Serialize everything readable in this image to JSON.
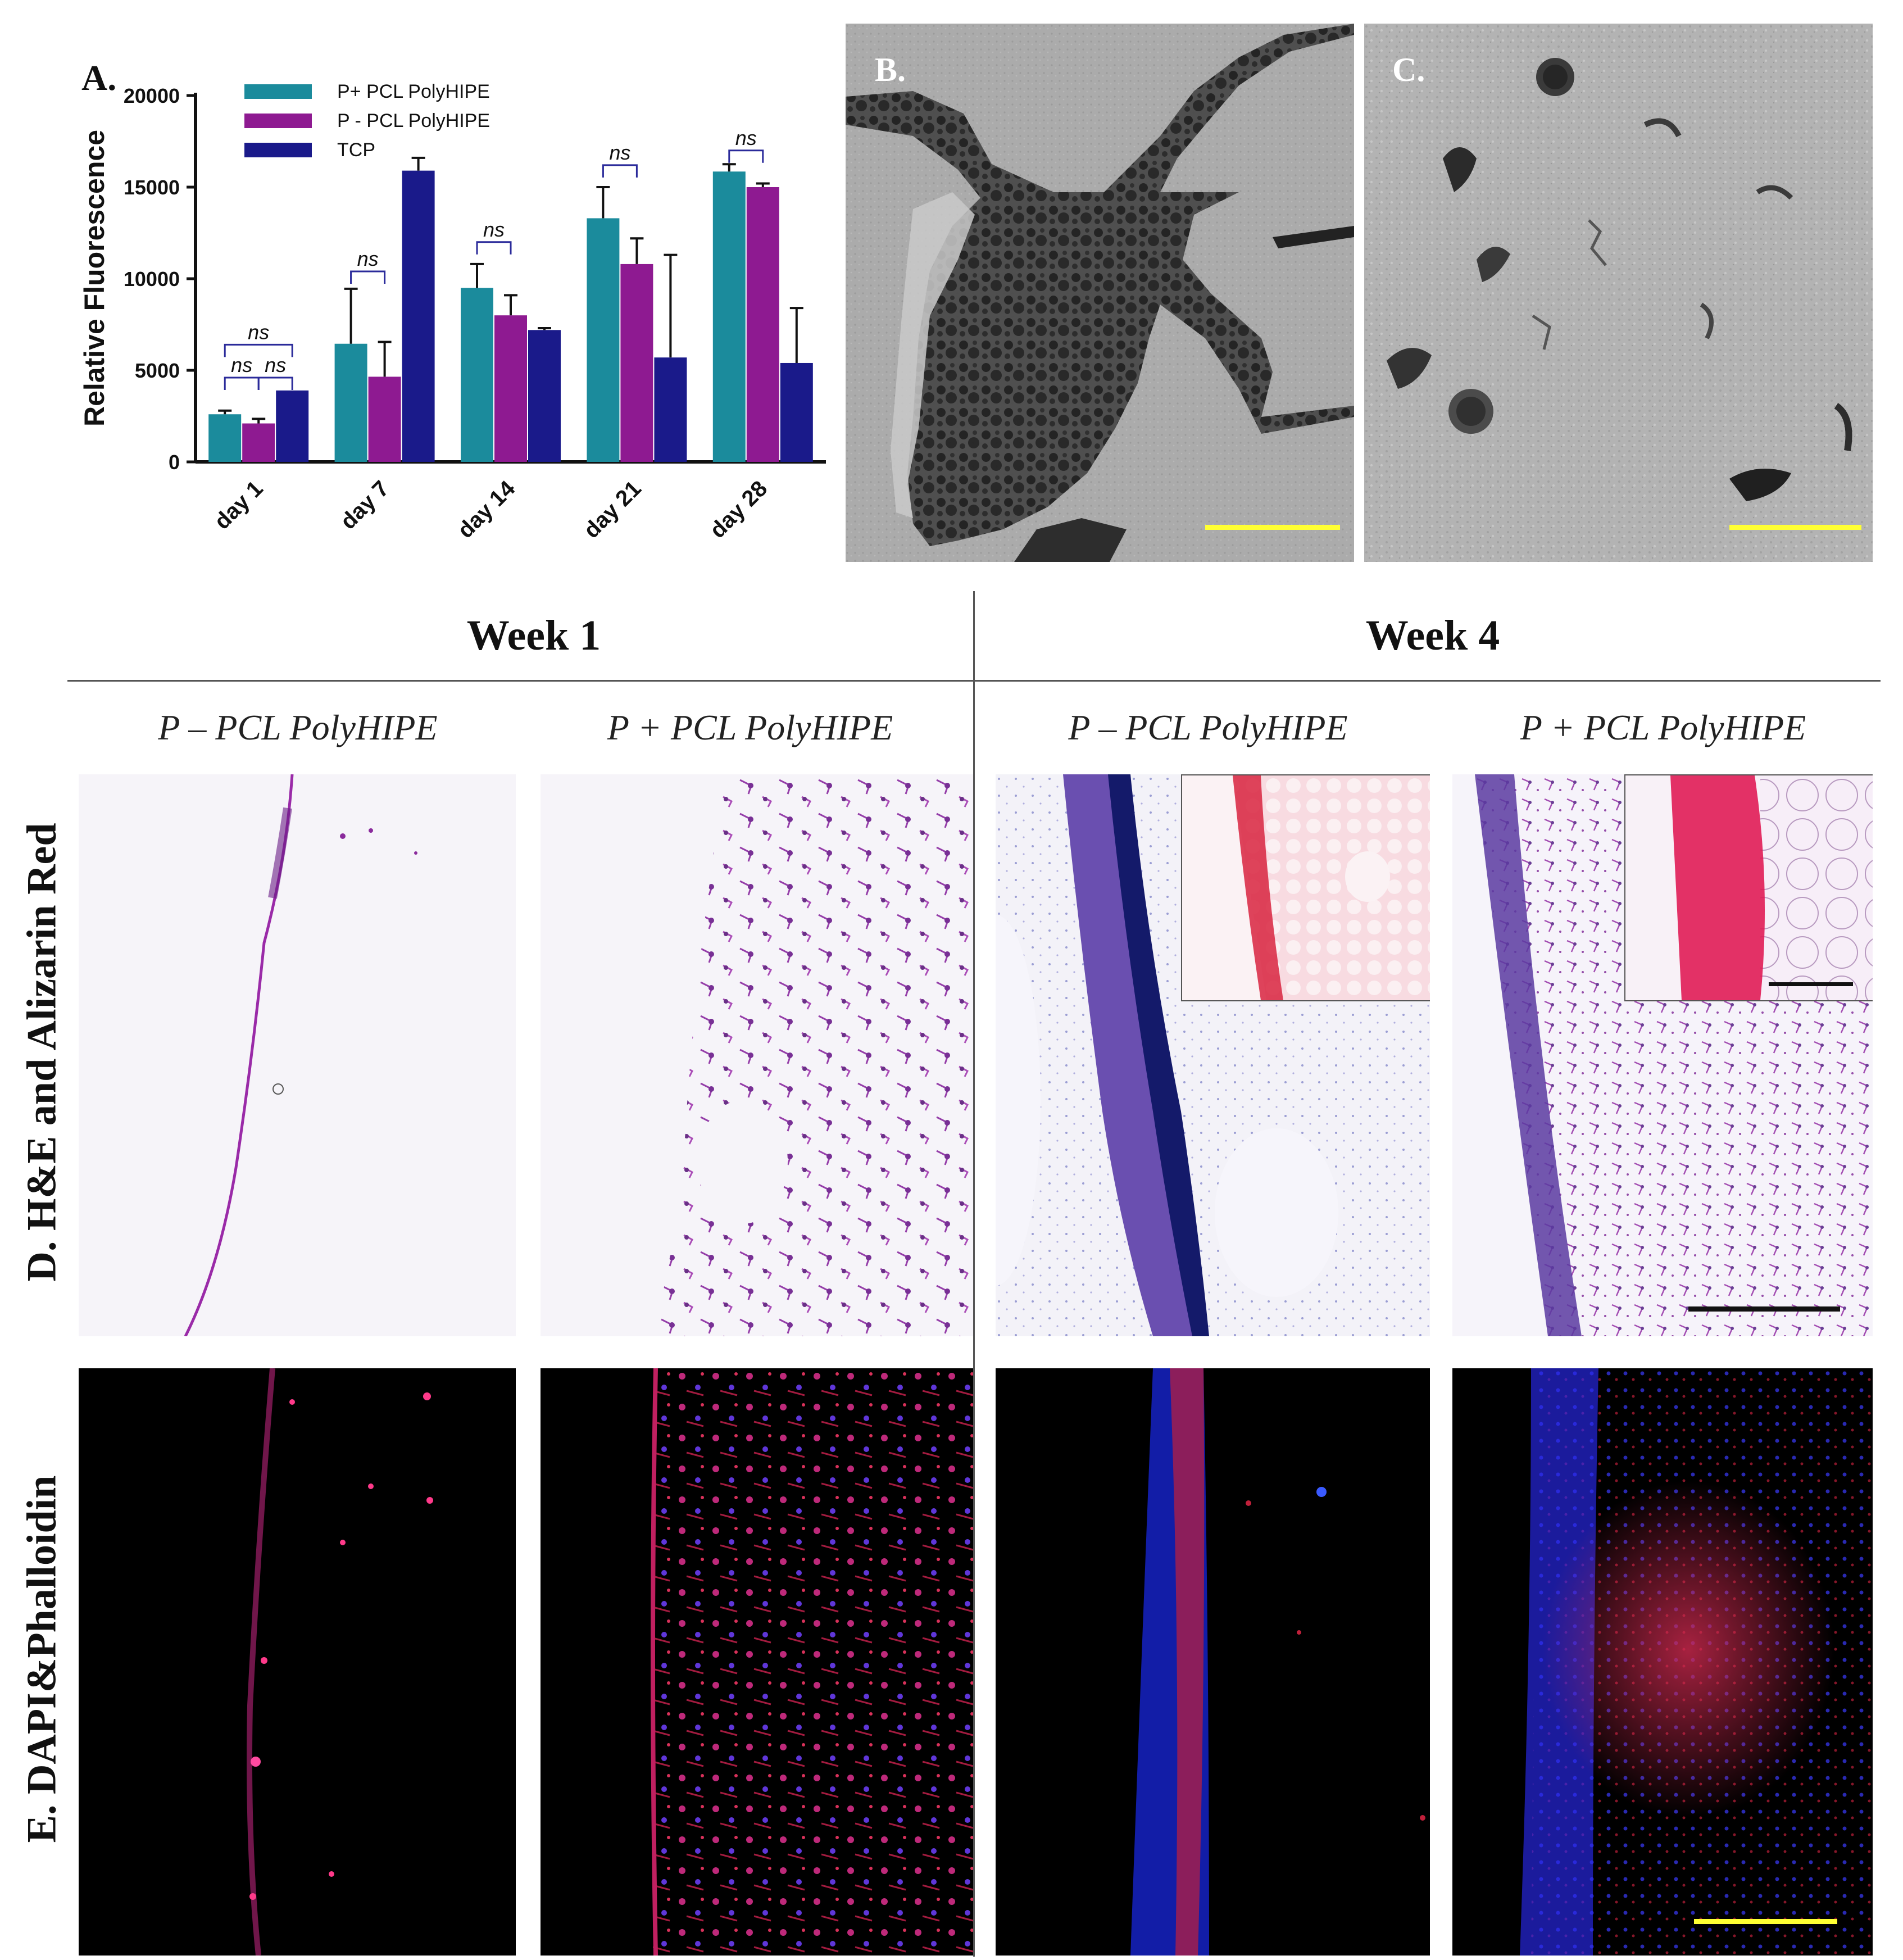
{
  "panel_labels": {
    "a": "A.",
    "b": "B.",
    "c": "C."
  },
  "chart_data": {
    "type": "bar",
    "title": "",
    "xlabel": "",
    "ylabel": "Relative Fluorescence",
    "ylim": [
      0,
      20000
    ],
    "yticks": [
      0,
      5000,
      10000,
      15000,
      20000
    ],
    "yticklabels": [
      "0",
      "5000",
      "10000",
      "15000",
      "20000"
    ],
    "categories": [
      "day 1",
      "day 7",
      "day 14",
      "day 21",
      "day 28"
    ],
    "series": [
      {
        "name": "P+ PCL PolyHIPE",
        "color": "#1b8b9c",
        "values": [
          2600,
          6450,
          9500,
          13300,
          15850
        ],
        "errors": [
          200,
          3000,
          1300,
          1700,
          400
        ]
      },
      {
        "name": "P - PCL PolyHIPE",
        "color": "#8e1a91",
        "values": [
          2100,
          4650,
          8000,
          10800,
          15000
        ],
        "errors": [
          250,
          1900,
          1100,
          1400,
          200
        ]
      },
      {
        "name": "TCP",
        "color": "#1a1a8a",
        "values": [
          3900,
          15900,
          7200,
          5700,
          5400
        ],
        "errors": [
          0,
          700,
          100,
          5600,
          3000
        ]
      }
    ],
    "significance": [
      {
        "label": "ns",
        "category": 0,
        "from": 0,
        "to": 1,
        "level": 4600
      },
      {
        "label": "ns",
        "category": 0,
        "from": 1,
        "to": 2,
        "level": 4600
      },
      {
        "label": "ns",
        "category": 0,
        "from": 0,
        "to": 2,
        "level": 6400
      },
      {
        "label": "ns",
        "category": 1,
        "from": 0,
        "to": 1,
        "level": 10400
      },
      {
        "label": "ns",
        "category": 2,
        "from": 0,
        "to": 1,
        "level": 12000
      },
      {
        "label": "ns",
        "category": 3,
        "from": 0,
        "to": 1,
        "level": 16200
      },
      {
        "label": "ns",
        "category": 4,
        "from": 0,
        "to": 1,
        "level": 17000
      }
    ],
    "legend_position": "top-left"
  },
  "headers": {
    "week1": "Week 1",
    "week4": "Week 4",
    "col_p_minus": "P – PCL PolyHIPE",
    "col_p_plus": "P + PCL PolyHIPE"
  },
  "row_labels": {
    "d": "D. H&E and Alizarin Red",
    "e": "E. DAPI&Phalloidin"
  },
  "colors": {
    "scale_yellow": "#ffff33",
    "scale_black": "#111111"
  }
}
